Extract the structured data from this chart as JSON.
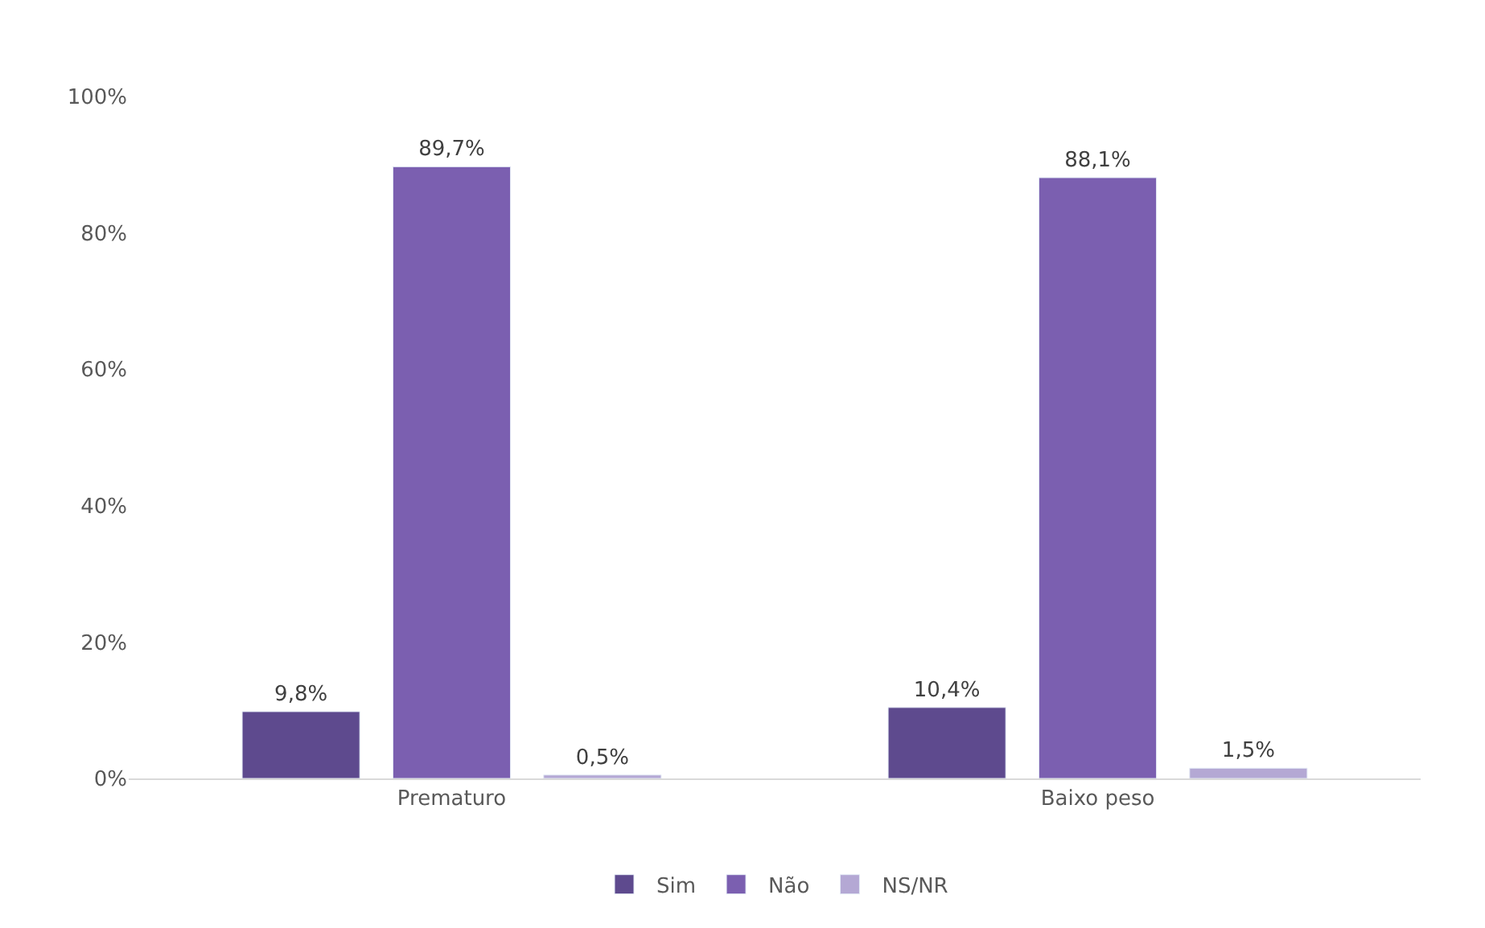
{
  "chart_data": {
    "type": "bar",
    "categories": [
      "Prematuro",
      "Baixo peso"
    ],
    "series": [
      {
        "name": "Sim",
        "color": "#5e4a8e",
        "values": [
          9.8,
          10.4
        ],
        "value_labels": [
          "9,8%",
          "10,4%"
        ]
      },
      {
        "name": "Não",
        "color": "#7b5fb0",
        "values": [
          89.7,
          88.1
        ],
        "value_labels": [
          "89,7%",
          "88,1%"
        ]
      },
      {
        "name": "NS/NR",
        "color": "#b4a8d4",
        "values": [
          0.5,
          1.5
        ],
        "value_labels": [
          "0,5%",
          "1,5%"
        ]
      }
    ],
    "ylim": [
      0,
      100
    ],
    "yticks": [
      {
        "value": 0,
        "label": "0%"
      },
      {
        "value": 20,
        "label": "20%"
      },
      {
        "value": 40,
        "label": "40%"
      },
      {
        "value": 60,
        "label": "60%"
      },
      {
        "value": 80,
        "label": "80%"
      },
      {
        "value": 100,
        "label": "100%"
      }
    ],
    "grid": false,
    "legend": "bottom"
  }
}
